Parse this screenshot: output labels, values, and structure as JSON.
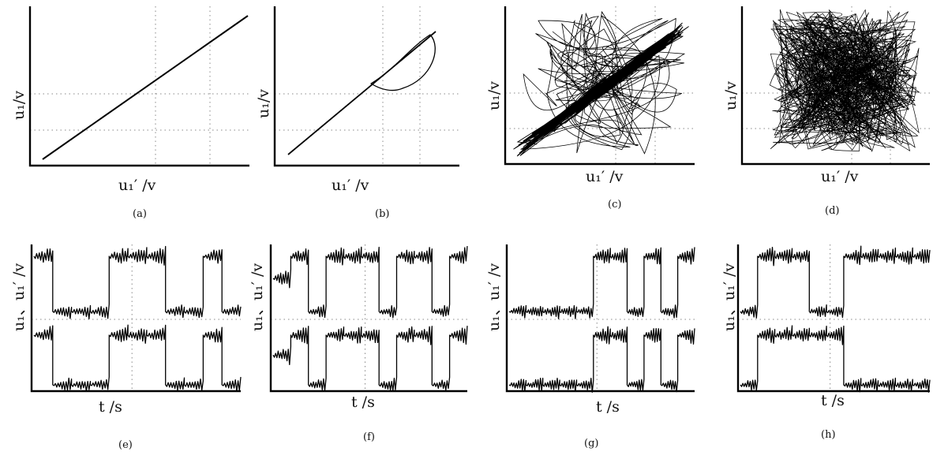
{
  "labels": {
    "phase_x": "u₁′  /v",
    "phase_y": "u₁/v",
    "time_x": "t  /s",
    "time_y": "u₁、u₁′  /v"
  },
  "captions": [
    "(a)",
    "(b)",
    "(c)",
    "(d)",
    "(e)",
    "(f)",
    "(g)",
    "(h)"
  ],
  "chart_data": [
    {
      "panel": "a",
      "type": "line",
      "xlabel": "u₁′ /v",
      "ylabel": "u₁/v",
      "shape": "identity diagonal (complete synchronization)"
    },
    {
      "panel": "b",
      "type": "line",
      "xlabel": "u₁′ /v",
      "ylabel": "u₁/v",
      "shape": "diagonal with small loop near top"
    },
    {
      "panel": "c",
      "type": "scatter",
      "xlabel": "u₁′ /v",
      "ylabel": "u₁/v",
      "shape": "dense diagonal band with scattered loops"
    },
    {
      "panel": "d",
      "type": "scatter",
      "xlabel": "u₁′ /v",
      "ylabel": "u₁/v",
      "shape": "filled square (no synchronization)"
    },
    {
      "panel": "e",
      "type": "line",
      "xlabel": "t /s",
      "ylabel": "u₁、u₁′ /v",
      "series": [
        "upper trace",
        "lower trace"
      ]
    },
    {
      "panel": "f",
      "type": "line",
      "xlabel": "t /s",
      "ylabel": "u₁、u₁′ /v",
      "series": [
        "upper trace",
        "lower trace"
      ]
    },
    {
      "panel": "g",
      "type": "line",
      "xlabel": "t /s",
      "ylabel": "u₁、u₁′ /v",
      "series": [
        "upper trace",
        "lower trace"
      ]
    },
    {
      "panel": "h",
      "type": "line",
      "xlabel": "t /s",
      "ylabel": "u₁、u₁′ /v",
      "series": [
        "upper trace",
        "lower trace"
      ]
    }
  ]
}
